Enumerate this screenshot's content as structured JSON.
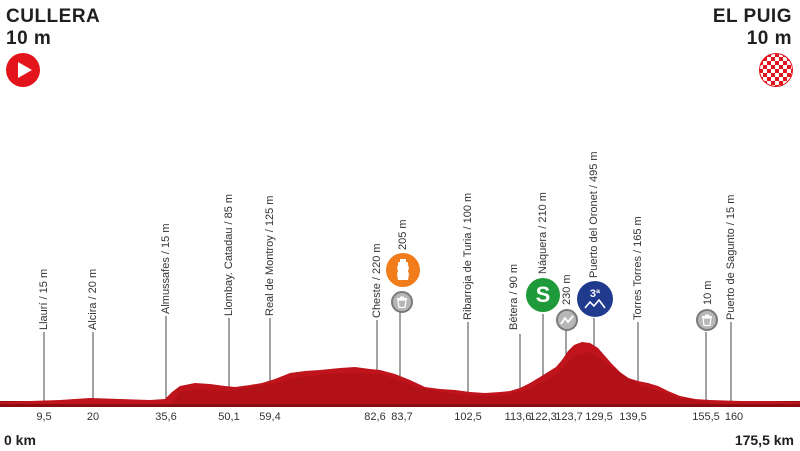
{
  "start": {
    "name": "CULLERA",
    "altitude": "10 m",
    "icon": "start-play-icon",
    "color": "#e3141c"
  },
  "finish": {
    "name": "EL PUIG",
    "altitude": "10 m",
    "icon": "finish-checkered-flag-icon",
    "color": "#e3141c"
  },
  "distance": {
    "start": "0 km",
    "end": "175,5 km"
  },
  "profile_color": "#c0141c",
  "locations": [
    {
      "label": "Llaurí / 15 m",
      "km": "9,5"
    },
    {
      "label": "Alcira / 20 m",
      "km": "20"
    },
    {
      "label": "Almussafes / 15 m",
      "km": "35,6"
    },
    {
      "label": "Llombay. Catadau / 85 m",
      "km": "50,1"
    },
    {
      "label": "Real de Montroy / 125 m",
      "km": "59,4"
    },
    {
      "label": "Cheste / 220 m",
      "km": "82,6"
    },
    {
      "label": "205 m",
      "km": "83,7"
    },
    {
      "label": "Ribarroja de Turia / 100 m",
      "km": "102,5"
    },
    {
      "label": "Bétera / 90 m",
      "km": "113,6"
    },
    {
      "label": "Náquera / 210 m",
      "km": "122,3"
    },
    {
      "label": "230 m",
      "km": "123,7"
    },
    {
      "label": "Puerto del Oronet / 495 m",
      "km": "129,5"
    },
    {
      "label": "Torres Torres / 165 m",
      "km": "139,5"
    },
    {
      "label": "10 m",
      "km": "155,5"
    },
    {
      "label": "Puerto de Sagunto / 15 m",
      "km": "160"
    }
  ],
  "badges": {
    "feed_zone": "feed-zone-bottle-icon",
    "waste_zone": "waste-bin-icon",
    "sprint": "S",
    "climb_category": "3ª",
    "climb_marker": "climb-start-icon"
  }
}
